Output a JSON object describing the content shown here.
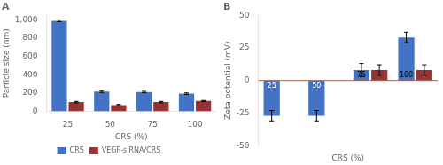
{
  "chart_data": [
    {
      "type": "bar",
      "title": "A",
      "xlabel": "CRS (%)",
      "ylabel": "Particle size (nm)",
      "categories": [
        25,
        50,
        75,
        100
      ],
      "series": [
        {
          "name": "CRS",
          "color": "#4472C4",
          "values": [
            990,
            215,
            210,
            192
          ],
          "errors": [
            10,
            10,
            8,
            8
          ]
        },
        {
          "name": "VEGF-siRNA/CRS",
          "color": "#993333",
          "values": [
            100,
            68,
            100,
            112
          ],
          "errors": [
            8,
            6,
            8,
            6
          ]
        }
      ],
      "ylim": [
        0,
        1050
      ],
      "yticks": [
        0,
        200,
        400,
        600,
        800,
        {
          "value": 1000,
          "label": "1,000"
        }
      ],
      "grid": false,
      "legend": "bottom"
    },
    {
      "type": "bar",
      "title": "B",
      "xlabel": "CRS (%)",
      "ylabel": "Zeta potential (mV)",
      "categories": [
        25,
        50,
        75,
        100
      ],
      "series": [
        {
          "name": "CRS",
          "color": "#4472C4",
          "values": [
            -27,
            -27,
            8,
            33
          ],
          "errors": [
            4,
            4,
            5,
            4
          ]
        },
        {
          "name": "VEGF-siRNA/CRS",
          "color": "#993333",
          "values": [
            null,
            null,
            8,
            8
          ],
          "errors": [
            null,
            null,
            4,
            4
          ]
        }
      ],
      "ylim": [
        -50,
        50
      ],
      "yticks": [
        -50,
        -25,
        0,
        25,
        50
      ],
      "grid": false,
      "tick_labels": "y"
    }
  ]
}
